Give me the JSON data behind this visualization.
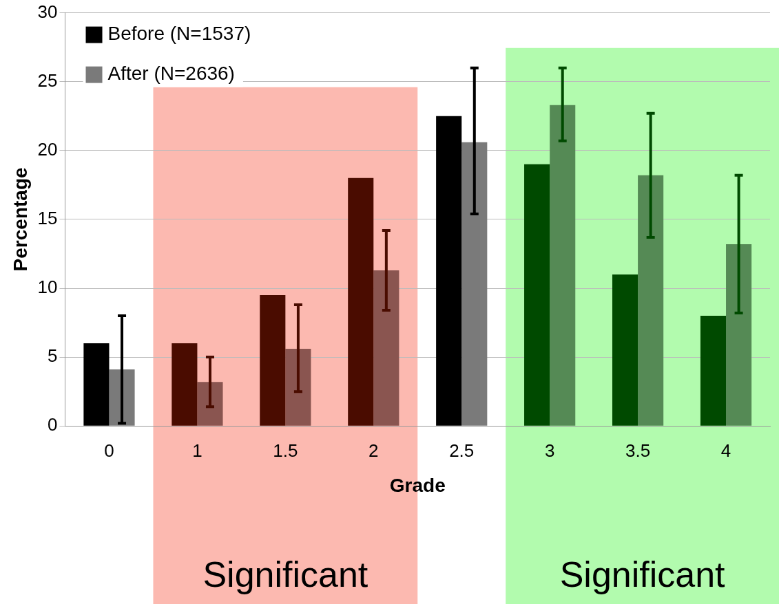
{
  "chart_data": {
    "type": "bar",
    "xlabel": "Grade",
    "ylabel": "Percentage",
    "categories": [
      "0",
      "1",
      "1.5",
      "2",
      "2.5",
      "3",
      "3.5",
      "4"
    ],
    "series": [
      {
        "name": "Before (N=1537)",
        "color": "#000000",
        "colors": [
          "#000000",
          "#4a0c00",
          "#4a0c00",
          "#4a0c00",
          "#000000",
          "#004a00",
          "#004a00",
          "#004a00"
        ],
        "values": [
          6,
          6,
          9.5,
          18,
          22.5,
          19,
          11,
          8
        ]
      },
      {
        "name": "After (N=2636)",
        "color": "#7a7a7a",
        "colors": [
          "#7a7a7a",
          "#8a5550",
          "#8a5550",
          "#8a5550",
          "#7a7a7a",
          "#558a55",
          "#558a55",
          "#558a55"
        ],
        "values": [
          4.1,
          3.2,
          5.6,
          11.3,
          20.6,
          23.3,
          18.2,
          13.2
        ],
        "errors": [
          [
            0.2,
            8
          ],
          [
            1.4,
            5
          ],
          [
            2.5,
            8.8
          ],
          [
            8.4,
            14.2
          ],
          [
            15.4,
            26
          ],
          [
            20.7,
            26
          ],
          [
            13.7,
            22.7
          ],
          [
            8.2,
            18.2
          ]
        ]
      }
    ],
    "ylim": [
      0,
      30
    ],
    "yticks": [
      0,
      5,
      10,
      15,
      20,
      25,
      30
    ],
    "grid": "y",
    "legend": "top left",
    "bands": [
      {
        "axis": "x",
        "from": "1",
        "to": "2",
        "label": "Significant",
        "color": "#fcb9b0"
      },
      {
        "axis": "x",
        "from": "3",
        "to": "4",
        "label": "Significant",
        "color": "#b2fbae"
      }
    ]
  }
}
